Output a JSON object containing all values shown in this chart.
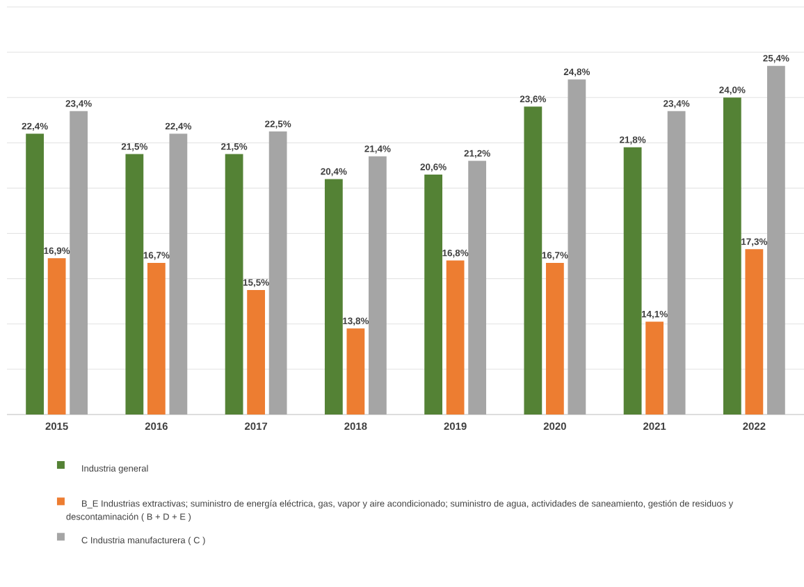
{
  "chart_data": {
    "type": "bar",
    "categories": [
      "2015",
      "2016",
      "2017",
      "2018",
      "2019",
      "2020",
      "2021",
      "2022"
    ],
    "series": [
      {
        "name": "Industria general",
        "color": "#548235",
        "values": [
          22.4,
          21.5,
          21.5,
          20.4,
          20.6,
          23.6,
          21.8,
          24.0
        ],
        "value_labels": [
          "22,4%",
          "21,5%",
          "21,5%",
          "20,4%",
          "20,6%",
          "23,6%",
          "21,8%",
          "24,0%"
        ]
      },
      {
        "name": "B_E Industrias extractivas; suministro de energía eléctrica, gas, vapor y  aire acondicionado; suministro de agua, actividades de saneamiento, gestión de residuos y descontaminación  ( B + D + E )",
        "color": "#ed7d31",
        "values": [
          16.9,
          16.7,
          15.5,
          13.8,
          16.8,
          16.7,
          14.1,
          17.3
        ],
        "value_labels": [
          "16,9%",
          "16,7%",
          "15,5%",
          "13,8%",
          "16,8%",
          "16,7%",
          "14,1%",
          "17,3%"
        ]
      },
      {
        "name": "C Industria manufacturera ( C )",
        "color": "#a5a5a5",
        "values": [
          23.4,
          22.4,
          22.5,
          21.4,
          21.2,
          24.8,
          23.4,
          25.4
        ],
        "value_labels": [
          "23,4%",
          "22,4%",
          "22,5%",
          "21,4%",
          "21,2%",
          "24,8%",
          "23,4%",
          "25,4%"
        ]
      }
    ],
    "ylim": [
      10,
      28
    ],
    "yticks": [
      {
        "value": 10,
        "label": null
      },
      {
        "value": 12,
        "label": null
      },
      {
        "value": 14,
        "label": null
      },
      {
        "value": 16,
        "label": null
      },
      {
        "value": 18,
        "label": null
      },
      {
        "value": 20,
        "label": null
      },
      {
        "value": 22,
        "label": null
      },
      {
        "value": 24,
        "label": null
      },
      {
        "value": 26,
        "label": null
      },
      {
        "value": 28,
        "label": null
      }
    ],
    "grid": "y",
    "legend": "bottom",
    "tick_labels": "x"
  }
}
